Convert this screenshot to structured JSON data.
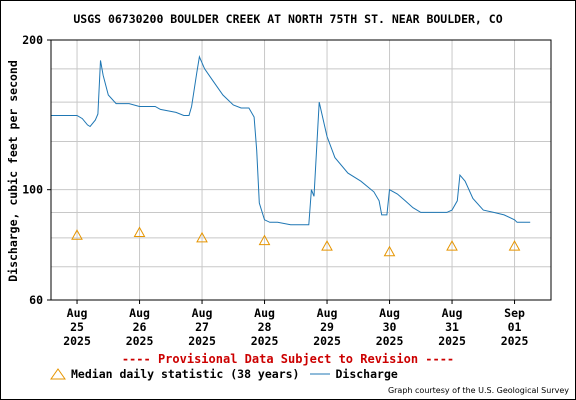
{
  "page": {
    "title": "USGS 06730200 BOULDER CREEK AT NORTH 75TH ST. NEAR BOULDER, CO",
    "provisional_note": "---- Provisional Data Subject to Revision ----",
    "courtesy": "Graph courtesy of the U.S. Geological Survey"
  },
  "colors": {
    "discharge": "#1f77b4",
    "median": "#e69500",
    "grid": "#c8c8c8",
    "provisional": "#cc0000"
  },
  "chart_data": {
    "type": "line",
    "title": "USGS 06730200 BOULDER CREEK AT NORTH 75TH ST. NEAR BOULDER, CO",
    "ylabel": "Discharge, cubic feet per second",
    "xlabel": "",
    "y_scale": "log",
    "ylim": [
      60,
      200
    ],
    "y_ticks": [
      {
        "value": 60,
        "label": "60"
      },
      {
        "value": 100,
        "label": "100"
      },
      {
        "value": 200,
        "label": "200"
      }
    ],
    "y_minor_gridlines": [
      70,
      80,
      90,
      125,
      150,
      175
    ],
    "xlim": [
      "2025-08-24T14:00",
      "2025-09-01T14:00"
    ],
    "x_ticks": [
      {
        "date": "2025-08-25",
        "label": [
          "Aug",
          "25",
          "2025"
        ]
      },
      {
        "date": "2025-08-26",
        "label": [
          "Aug",
          "26",
          "2025"
        ]
      },
      {
        "date": "2025-08-27",
        "label": [
          "Aug",
          "27",
          "2025"
        ]
      },
      {
        "date": "2025-08-28",
        "label": [
          "Aug",
          "28",
          "2025"
        ]
      },
      {
        "date": "2025-08-29",
        "label": [
          "Aug",
          "29",
          "2025"
        ]
      },
      {
        "date": "2025-08-30",
        "label": [
          "Aug",
          "30",
          "2025"
        ]
      },
      {
        "date": "2025-08-31",
        "label": [
          "Aug",
          "31",
          "2025"
        ]
      },
      {
        "date": "2025-09-01",
        "label": [
          "Sep",
          "01",
          "2025"
        ]
      }
    ],
    "grid": true,
    "legend": {
      "position": "bottom",
      "entries": [
        {
          "name": "Median daily statistic (38 years)",
          "marker": "triangle"
        },
        {
          "name": "Discharge",
          "marker": "line"
        }
      ]
    },
    "series": [
      {
        "name": "Discharge",
        "marker": "line",
        "points": [
          [
            "2025-08-24T14:00",
            141
          ],
          [
            "2025-08-25T00:00",
            141
          ],
          [
            "2025-08-25T02:00",
            139
          ],
          [
            "2025-08-25T04:00",
            135
          ],
          [
            "2025-08-25T05:00",
            134
          ],
          [
            "2025-08-25T07:00",
            138
          ],
          [
            "2025-08-25T08:00",
            142
          ],
          [
            "2025-08-25T09:00",
            182
          ],
          [
            "2025-08-25T10:00",
            170
          ],
          [
            "2025-08-25T12:00",
            155
          ],
          [
            "2025-08-25T15:00",
            149
          ],
          [
            "2025-08-25T20:00",
            149
          ],
          [
            "2025-08-26T00:00",
            147
          ],
          [
            "2025-08-26T06:00",
            147
          ],
          [
            "2025-08-26T08:00",
            145
          ],
          [
            "2025-08-26T14:00",
            143
          ],
          [
            "2025-08-26T17:00",
            141
          ],
          [
            "2025-08-26T19:00",
            141
          ],
          [
            "2025-08-26T20:00",
            147
          ],
          [
            "2025-08-26T22:00",
            172
          ],
          [
            "2025-08-26T23:00",
            185
          ],
          [
            "2025-08-27T01:00",
            175
          ],
          [
            "2025-08-27T04:00",
            166
          ],
          [
            "2025-08-27T08:00",
            155
          ],
          [
            "2025-08-27T12:00",
            148
          ],
          [
            "2025-08-27T15:00",
            146
          ],
          [
            "2025-08-27T18:00",
            146
          ],
          [
            "2025-08-27T20:00",
            140
          ],
          [
            "2025-08-27T21:00",
            120
          ],
          [
            "2025-08-27T22:00",
            94
          ],
          [
            "2025-08-28T00:00",
            87
          ],
          [
            "2025-08-28T02:00",
            86
          ],
          [
            "2025-08-28T05:00",
            86
          ],
          [
            "2025-08-28T10:00",
            85
          ],
          [
            "2025-08-28T15:00",
            85
          ],
          [
            "2025-08-28T17:00",
            85
          ],
          [
            "2025-08-28T18:00",
            100
          ],
          [
            "2025-08-28T19:00",
            97
          ],
          [
            "2025-08-28T21:00",
            150
          ],
          [
            "2025-08-29T00:00",
            128
          ],
          [
            "2025-08-29T03:00",
            116
          ],
          [
            "2025-08-29T08:00",
            108
          ],
          [
            "2025-08-29T13:00",
            104
          ],
          [
            "2025-08-29T18:00",
            99
          ],
          [
            "2025-08-29T20:00",
            95
          ],
          [
            "2025-08-29T21:00",
            89
          ],
          [
            "2025-08-29T23:00",
            89
          ],
          [
            "2025-08-30T00:00",
            100
          ],
          [
            "2025-08-30T03:00",
            98
          ],
          [
            "2025-08-30T06:00",
            95
          ],
          [
            "2025-08-30T09:00",
            92
          ],
          [
            "2025-08-30T12:00",
            90
          ],
          [
            "2025-08-30T16:00",
            90
          ],
          [
            "2025-08-30T22:00",
            90
          ],
          [
            "2025-08-31T00:00",
            91
          ],
          [
            "2025-08-31T02:00",
            95
          ],
          [
            "2025-08-31T03:00",
            107
          ],
          [
            "2025-08-31T05:00",
            104
          ],
          [
            "2025-08-31T08:00",
            96
          ],
          [
            "2025-08-31T12:00",
            91
          ],
          [
            "2025-08-31T16:00",
            90
          ],
          [
            "2025-08-31T20:00",
            89
          ],
          [
            "2025-09-01T00:00",
            87
          ],
          [
            "2025-09-01T01:00",
            86
          ],
          [
            "2025-09-01T03:00",
            86
          ],
          [
            "2025-09-01T06:00",
            86
          ]
        ]
      },
      {
        "name": "Median daily statistic (38 years)",
        "marker": "triangle",
        "points": [
          [
            "2025-08-25T00:00",
            81
          ],
          [
            "2025-08-26T00:00",
            82
          ],
          [
            "2025-08-27T00:00",
            80
          ],
          [
            "2025-08-28T00:00",
            79
          ],
          [
            "2025-08-29T00:00",
            77
          ],
          [
            "2025-08-30T00:00",
            75
          ],
          [
            "2025-08-31T00:00",
            77
          ],
          [
            "2025-09-01T00:00",
            77
          ]
        ]
      }
    ]
  }
}
